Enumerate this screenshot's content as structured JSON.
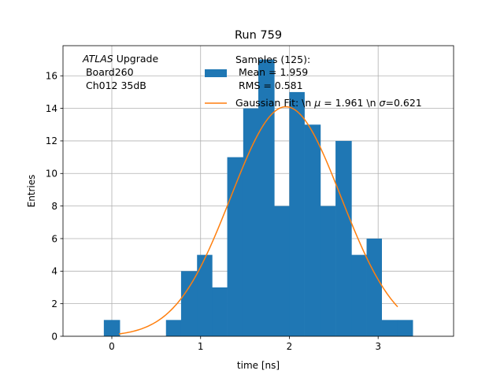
{
  "chart_data": {
    "type": "bar",
    "title": "Run 759",
    "xlabel": "time [ns]",
    "ylabel": "Entries",
    "xlim": [
      -0.55,
      3.85
    ],
    "ylim": [
      0,
      17.85
    ],
    "xticks": [
      0,
      1,
      2,
      3
    ],
    "yticks": [
      0,
      2,
      4,
      6,
      8,
      10,
      12,
      14,
      16
    ],
    "grid": true,
    "histogram": {
      "name": "Samples (125):\n Mean = 1.959\n RMS = 0.581",
      "color": "#1f77b4",
      "bins": [
        {
          "x0": -0.09,
          "x1": 0.09,
          "value": 1
        },
        {
          "x0": 0.61,
          "x1": 0.78,
          "value": 1
        },
        {
          "x0": 0.78,
          "x1": 0.96,
          "value": 4
        },
        {
          "x0": 0.96,
          "x1": 1.13,
          "value": 5
        },
        {
          "x0": 1.13,
          "x1": 1.3,
          "value": 3
        },
        {
          "x0": 1.3,
          "x1": 1.48,
          "value": 11
        },
        {
          "x0": 1.48,
          "x1": 1.65,
          "value": 14
        },
        {
          "x0": 1.65,
          "x1": 1.83,
          "value": 17
        },
        {
          "x0": 1.83,
          "x1": 2.0,
          "value": 8
        },
        {
          "x0": 2.0,
          "x1": 2.17,
          "value": 15
        },
        {
          "x0": 2.17,
          "x1": 2.35,
          "value": 13
        },
        {
          "x0": 2.35,
          "x1": 2.52,
          "value": 8
        },
        {
          "x0": 2.52,
          "x1": 2.7,
          "value": 12
        },
        {
          "x0": 2.7,
          "x1": 2.87,
          "value": 5
        },
        {
          "x0": 2.87,
          "x1": 3.04,
          "value": 6
        },
        {
          "x0": 3.04,
          "x1": 3.22,
          "value": 1
        },
        {
          "x0": 3.22,
          "x1": 3.39,
          "value": 1
        }
      ]
    },
    "fit": {
      "name": "Gaussian Fit: \\n $\\mu$ = 1.961 \\n $\\sigma$=0.621",
      "color": "#ff7f0e",
      "amplitude": 14.1,
      "mu": 1.961,
      "sigma": 0.621,
      "x_range": [
        0.08,
        3.22
      ]
    },
    "annotation": {
      "italic": "ATLAS",
      "suffix": " Upgrade",
      "lines": [
        " Board260",
        " Ch012 35dB"
      ]
    },
    "legend": {
      "placement": "top-right",
      "sample_lines": [
        "Samples (125):",
        " Mean = 1.959",
        " RMS = 0.581"
      ],
      "fit_prefix": "Gaussian Fit: \\n ",
      "fit_mu_symbol": "μ",
      "fit_middle": " = 1.961 \\n ",
      "fit_sigma_symbol": "σ",
      "fit_suffix": "=0.621"
    }
  }
}
